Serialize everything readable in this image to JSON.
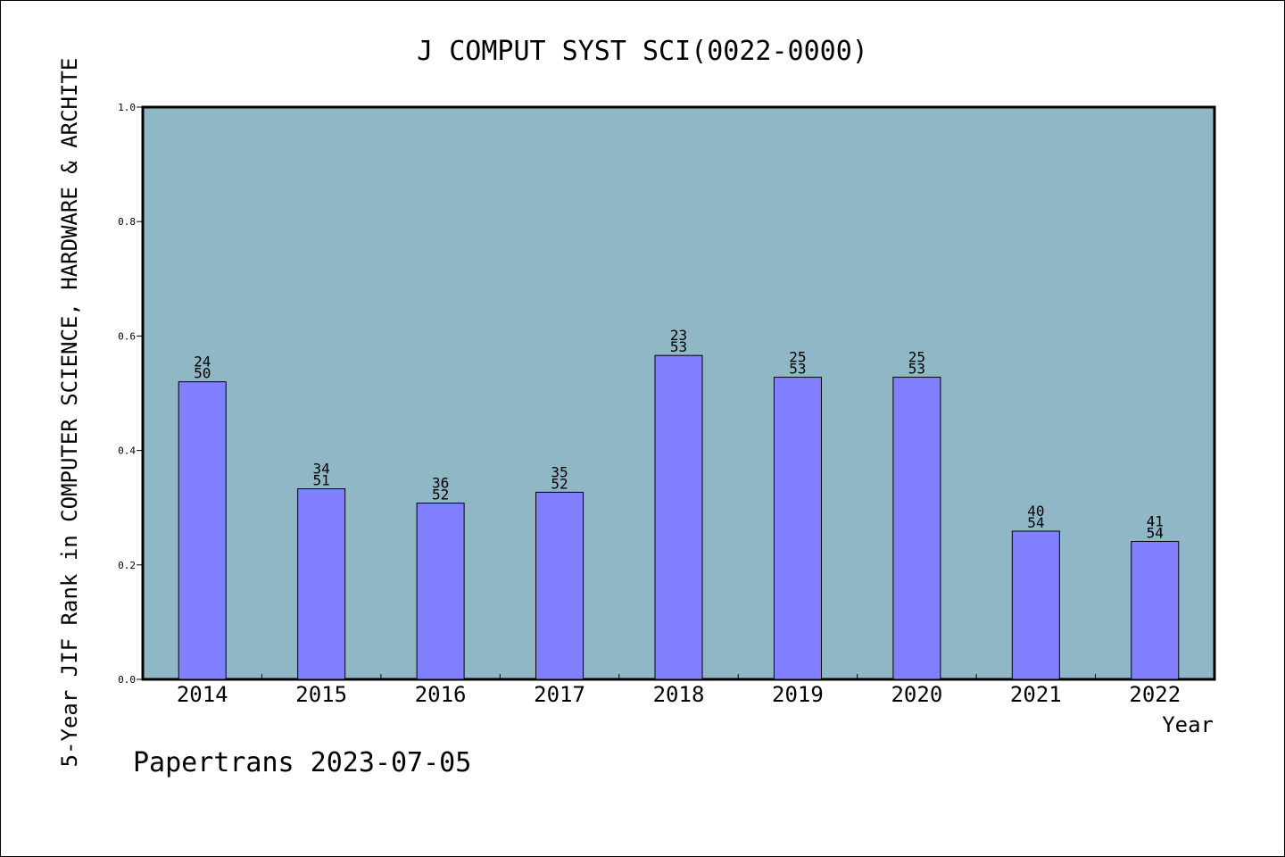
{
  "chart_data": {
    "type": "bar",
    "title": "J COMPUT SYST SCI(0022-0000)",
    "xlabel": "Year",
    "ylabel": "5-Year JIF Rank in COMPUTER SCIENCE, HARDWARE & ARCHITE",
    "ylim": [
      0,
      1
    ],
    "yticks": [
      "0.0",
      "0.2",
      "0.4",
      "0.6",
      "0.8",
      "1.0"
    ],
    "categories": [
      "2014",
      "2015",
      "2016",
      "2017",
      "2018",
      "2019",
      "2020",
      "2021",
      "2022"
    ],
    "values": [
      0.52,
      0.333,
      0.308,
      0.327,
      0.566,
      0.528,
      0.528,
      0.259,
      0.241
    ],
    "bar_labels": [
      {
        "rank": "24",
        "total": "50"
      },
      {
        "rank": "34",
        "total": "51"
      },
      {
        "rank": "36",
        "total": "52"
      },
      {
        "rank": "35",
        "total": "52"
      },
      {
        "rank": "23",
        "total": "53"
      },
      {
        "rank": "25",
        "total": "53"
      },
      {
        "rank": "25",
        "total": "53"
      },
      {
        "rank": "40",
        "total": "54"
      },
      {
        "rank": "41",
        "total": "54"
      }
    ],
    "grid": false,
    "colors": {
      "plot_background": "#8fb7c6",
      "bar_fill": "#8080ff",
      "bar_stroke": "#000000"
    }
  },
  "footer": {
    "credit": "Papertrans 2023-07-05"
  }
}
